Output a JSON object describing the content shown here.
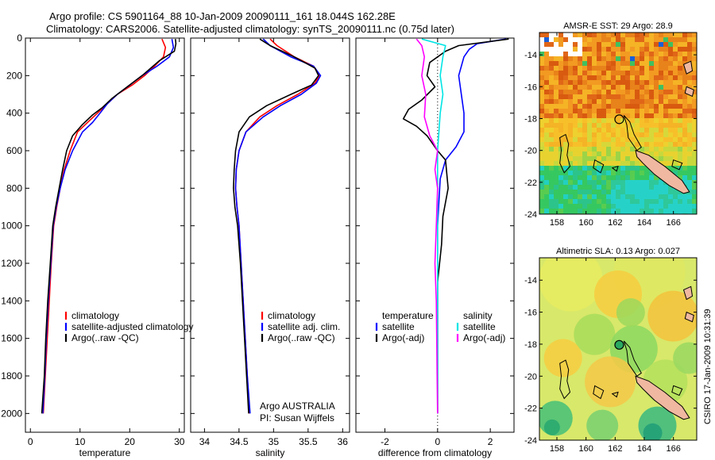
{
  "figure_title_line1": "Argo profile: CS 5901164_88 10-Jan-2009 20090111_161 18.044S 162.28E",
  "figure_title_line2": "Climatology: CARS2006. Satellite-adjusted climatology: synTS_20090111.nc (0.75d later)",
  "side_label": "CSIRO 17-Jan-2009 10:31:39",
  "colors": {
    "climatology": "#ff0000",
    "satellite": "#0000ff",
    "argo": "#000000",
    "sal_satellite": "#00e5e5",
    "sal_argo": "#ff00ff"
  },
  "chart_data": [
    {
      "type": "line",
      "xlabel": "temperature",
      "xlim": [
        -1,
        31
      ],
      "ylim": [
        0,
        2100
      ],
      "xticks": [
        0,
        10,
        20,
        30
      ],
      "yticks": [
        0,
        200,
        400,
        600,
        800,
        1000,
        1200,
        1400,
        1600,
        1800,
        2000
      ],
      "legend": [
        "climatology",
        "satellite-adjusted climatology",
        "Argo(..raw -QC)"
      ],
      "series": [
        {
          "name": "climatology",
          "color": "#ff0000",
          "points": [
            [
              26.5,
              5
            ],
            [
              27.2,
              50
            ],
            [
              26.8,
              100
            ],
            [
              25,
              150
            ],
            [
              23,
              200
            ],
            [
              20.5,
              250
            ],
            [
              17.5,
              300
            ],
            [
              15.5,
              350
            ],
            [
              13.5,
              400
            ],
            [
              11.5,
              450
            ],
            [
              9.5,
              500
            ],
            [
              8,
              600
            ],
            [
              6.8,
              700
            ],
            [
              6,
              800
            ],
            [
              5.3,
              900
            ],
            [
              4.7,
              1000
            ],
            [
              4.2,
              1200
            ],
            [
              3.8,
              1400
            ],
            [
              3.4,
              1600
            ],
            [
              3,
              1800
            ],
            [
              2.6,
              2000
            ]
          ]
        },
        {
          "name": "satellite-adjusted climatology",
          "color": "#0000ff",
          "points": [
            [
              28.5,
              5
            ],
            [
              28.8,
              50
            ],
            [
              28,
              100
            ],
            [
              25.5,
              150
            ],
            [
              22.5,
              200
            ],
            [
              20,
              250
            ],
            [
              17.5,
              300
            ],
            [
              15.5,
              350
            ],
            [
              14,
              400
            ],
            [
              12.5,
              450
            ],
            [
              10.5,
              500
            ],
            [
              8.5,
              600
            ],
            [
              7,
              700
            ],
            [
              6,
              800
            ],
            [
              5.2,
              900
            ],
            [
              4.6,
              1000
            ],
            [
              4.1,
              1200
            ],
            [
              3.6,
              1400
            ],
            [
              3.2,
              1600
            ],
            [
              2.9,
              1800
            ],
            [
              2.5,
              2000
            ]
          ]
        },
        {
          "name": "Argo(..raw -QC)",
          "color": "#000000",
          "points": [
            [
              29.2,
              5
            ],
            [
              29.3,
              30
            ],
            [
              29,
              70
            ],
            [
              26,
              120
            ],
            [
              22.5,
              200
            ],
            [
              19.5,
              260
            ],
            [
              16.5,
              320
            ],
            [
              14.5,
              370
            ],
            [
              12.5,
              410
            ],
            [
              10.5,
              460
            ],
            [
              8.5,
              520
            ],
            [
              7.3,
              600
            ],
            [
              6.5,
              700
            ],
            [
              5.8,
              800
            ],
            [
              5.1,
              900
            ],
            [
              4.5,
              1000
            ],
            [
              4,
              1200
            ],
            [
              3.5,
              1400
            ],
            [
              3.1,
              1600
            ],
            [
              2.8,
              1800
            ],
            [
              2.3,
              2000
            ]
          ]
        }
      ]
    },
    {
      "type": "line",
      "xlabel": "salinity",
      "xlim": [
        33.8,
        36.1
      ],
      "ylim": [
        0,
        2100
      ],
      "xticks": [
        34,
        34.5,
        35,
        35.5,
        36
      ],
      "yticks": [
        0,
        200,
        400,
        600,
        800,
        1000,
        1200,
        1400,
        1600,
        1800,
        2000
      ],
      "legend": [
        "climatology",
        "satellite adj. clim.",
        "Argo(..raw -QC)"
      ],
      "annotation": [
        "Argo AUSTRALIA",
        "PI: Susan Wijffels"
      ],
      "series": [
        {
          "name": "climatology",
          "color": "#ff0000",
          "points": [
            [
              34.95,
              5
            ],
            [
              35.05,
              40
            ],
            [
              35.3,
              100
            ],
            [
              35.58,
              150
            ],
            [
              35.66,
              200
            ],
            [
              35.6,
              240
            ],
            [
              35.35,
              300
            ],
            [
              35.05,
              360
            ],
            [
              34.8,
              420
            ],
            [
              34.6,
              500
            ],
            [
              34.5,
              600
            ],
            [
              34.46,
              700
            ],
            [
              34.45,
              800
            ],
            [
              34.47,
              900
            ],
            [
              34.5,
              1000
            ],
            [
              34.53,
              1200
            ],
            [
              34.56,
              1400
            ],
            [
              34.59,
              1600
            ],
            [
              34.62,
              1800
            ],
            [
              34.65,
              2000
            ]
          ]
        },
        {
          "name": "satellite adj. clim.",
          "color": "#0000ff",
          "points": [
            [
              34.85,
              5
            ],
            [
              34.95,
              40
            ],
            [
              35.25,
              100
            ],
            [
              35.58,
              150
            ],
            [
              35.68,
              200
            ],
            [
              35.62,
              240
            ],
            [
              35.4,
              300
            ],
            [
              35.1,
              360
            ],
            [
              34.85,
              420
            ],
            [
              34.6,
              500
            ],
            [
              34.5,
              600
            ],
            [
              34.46,
              700
            ],
            [
              34.45,
              800
            ],
            [
              34.47,
              900
            ],
            [
              34.5,
              1000
            ],
            [
              34.53,
              1200
            ],
            [
              34.56,
              1400
            ],
            [
              34.59,
              1600
            ],
            [
              34.62,
              1800
            ],
            [
              34.66,
              2000
            ]
          ]
        },
        {
          "name": "Argo(..raw -QC)",
          "color": "#000000",
          "points": [
            [
              34.8,
              5
            ],
            [
              34.95,
              40
            ],
            [
              35.3,
              100
            ],
            [
              35.6,
              160
            ],
            [
              35.65,
              200
            ],
            [
              35.55,
              250
            ],
            [
              35.25,
              300
            ],
            [
              34.9,
              360
            ],
            [
              34.65,
              420
            ],
            [
              34.5,
              500
            ],
            [
              34.45,
              600
            ],
            [
              34.43,
              700
            ],
            [
              34.42,
              800
            ],
            [
              34.44,
              900
            ],
            [
              34.48,
              1000
            ],
            [
              34.52,
              1200
            ],
            [
              34.55,
              1400
            ],
            [
              34.58,
              1600
            ],
            [
              34.61,
              1800
            ],
            [
              34.64,
              2000
            ]
          ]
        }
      ]
    },
    {
      "type": "line",
      "xlabel": "difference from climatology",
      "xlim": [
        -3.1,
        2.9
      ],
      "ylim": [
        0,
        2100
      ],
      "xticks": [
        -2,
        0,
        2
      ],
      "yticks": [
        0,
        200,
        400,
        600,
        800,
        1000,
        1200,
        1400,
        1600,
        1800,
        2000
      ],
      "legend_group_labels": [
        "temperature",
        "salinity"
      ],
      "legend": [
        "satellite",
        "Argo(-adj)",
        "satellite",
        "Argo(-adj)"
      ],
      "series": [
        {
          "name": "temperature satellite",
          "color": "#0000ff",
          "points": [
            [
              2.6,
              5
            ],
            [
              1.5,
              30
            ],
            [
              1.2,
              60
            ],
            [
              1,
              100
            ],
            [
              0.8,
              200
            ],
            [
              0.9,
              300
            ],
            [
              1,
              400
            ],
            [
              1,
              500
            ],
            [
              0.7,
              580
            ],
            [
              0.3,
              650
            ],
            [
              0.1,
              750
            ],
            [
              0,
              1000
            ],
            [
              0,
              1400
            ],
            [
              0,
              1800
            ],
            [
              0,
              2000
            ]
          ]
        },
        {
          "name": "temperature Argo(-adj)",
          "color": "#000000",
          "points": [
            [
              2.7,
              5
            ],
            [
              0.8,
              40
            ],
            [
              0.3,
              70
            ],
            [
              -0.3,
              130
            ],
            [
              -0.4,
              200
            ],
            [
              -0.1,
              260
            ],
            [
              -0.6,
              330
            ],
            [
              -1.1,
              380
            ],
            [
              -1.3,
              430
            ],
            [
              -0.8,
              470
            ],
            [
              -0.4,
              520
            ],
            [
              0,
              600
            ],
            [
              0.3,
              650
            ],
            [
              0.4,
              800
            ],
            [
              0.2,
              950
            ],
            [
              0.15,
              1100
            ],
            [
              0,
              1300
            ],
            [
              0,
              1600
            ],
            [
              0,
              2000
            ]
          ]
        },
        {
          "name": "salinity satellite",
          "color": "#00e5e5",
          "points": [
            [
              -0.6,
              5
            ],
            [
              0.3,
              40
            ],
            [
              0.2,
              100
            ],
            [
              0.1,
              200
            ],
            [
              0.2,
              300
            ],
            [
              0.1,
              400
            ],
            [
              0.05,
              500
            ],
            [
              0,
              600
            ],
            [
              0,
              800
            ],
            [
              0,
              1000
            ],
            [
              0,
              1200
            ],
            [
              0,
              1600
            ],
            [
              0,
              2000
            ]
          ]
        },
        {
          "name": "salinity Argo(-adj)",
          "color": "#ff00ff",
          "points": [
            [
              -0.8,
              5
            ],
            [
              -0.6,
              40
            ],
            [
              -0.5,
              100
            ],
            [
              -0.6,
              200
            ],
            [
              -0.45,
              300
            ],
            [
              -0.5,
              420
            ],
            [
              -0.3,
              520
            ],
            [
              0,
              600
            ],
            [
              -0.1,
              700
            ],
            [
              0,
              800
            ],
            [
              -0.05,
              1000
            ],
            [
              -0.1,
              1200
            ],
            [
              -0.05,
              1400
            ],
            [
              0,
              2000
            ]
          ]
        }
      ]
    },
    {
      "type": "heatmap",
      "title": "AMSR-E SST: 29 Argo: 28.9",
      "xticks": [
        158,
        160,
        162,
        164,
        166
      ],
      "yticks": [
        -14,
        -16,
        -18,
        -20,
        -22,
        -24
      ],
      "xlim": [
        156.8,
        167.6
      ],
      "ylim": [
        -24,
        -12.6
      ],
      "argo_position": [
        162.28,
        -18.044
      ]
    },
    {
      "type": "heatmap",
      "title": "Altimetric SLA: 0.13 Argo: 0.027",
      "xticks": [
        158,
        160,
        162,
        164,
        166
      ],
      "yticks": [
        -14,
        -16,
        -18,
        -20,
        -22,
        -24
      ],
      "xlim": [
        156.8,
        167.6
      ],
      "ylim": [
        -24,
        -12.6
      ],
      "argo_position": [
        162.28,
        -18.044
      ]
    }
  ]
}
